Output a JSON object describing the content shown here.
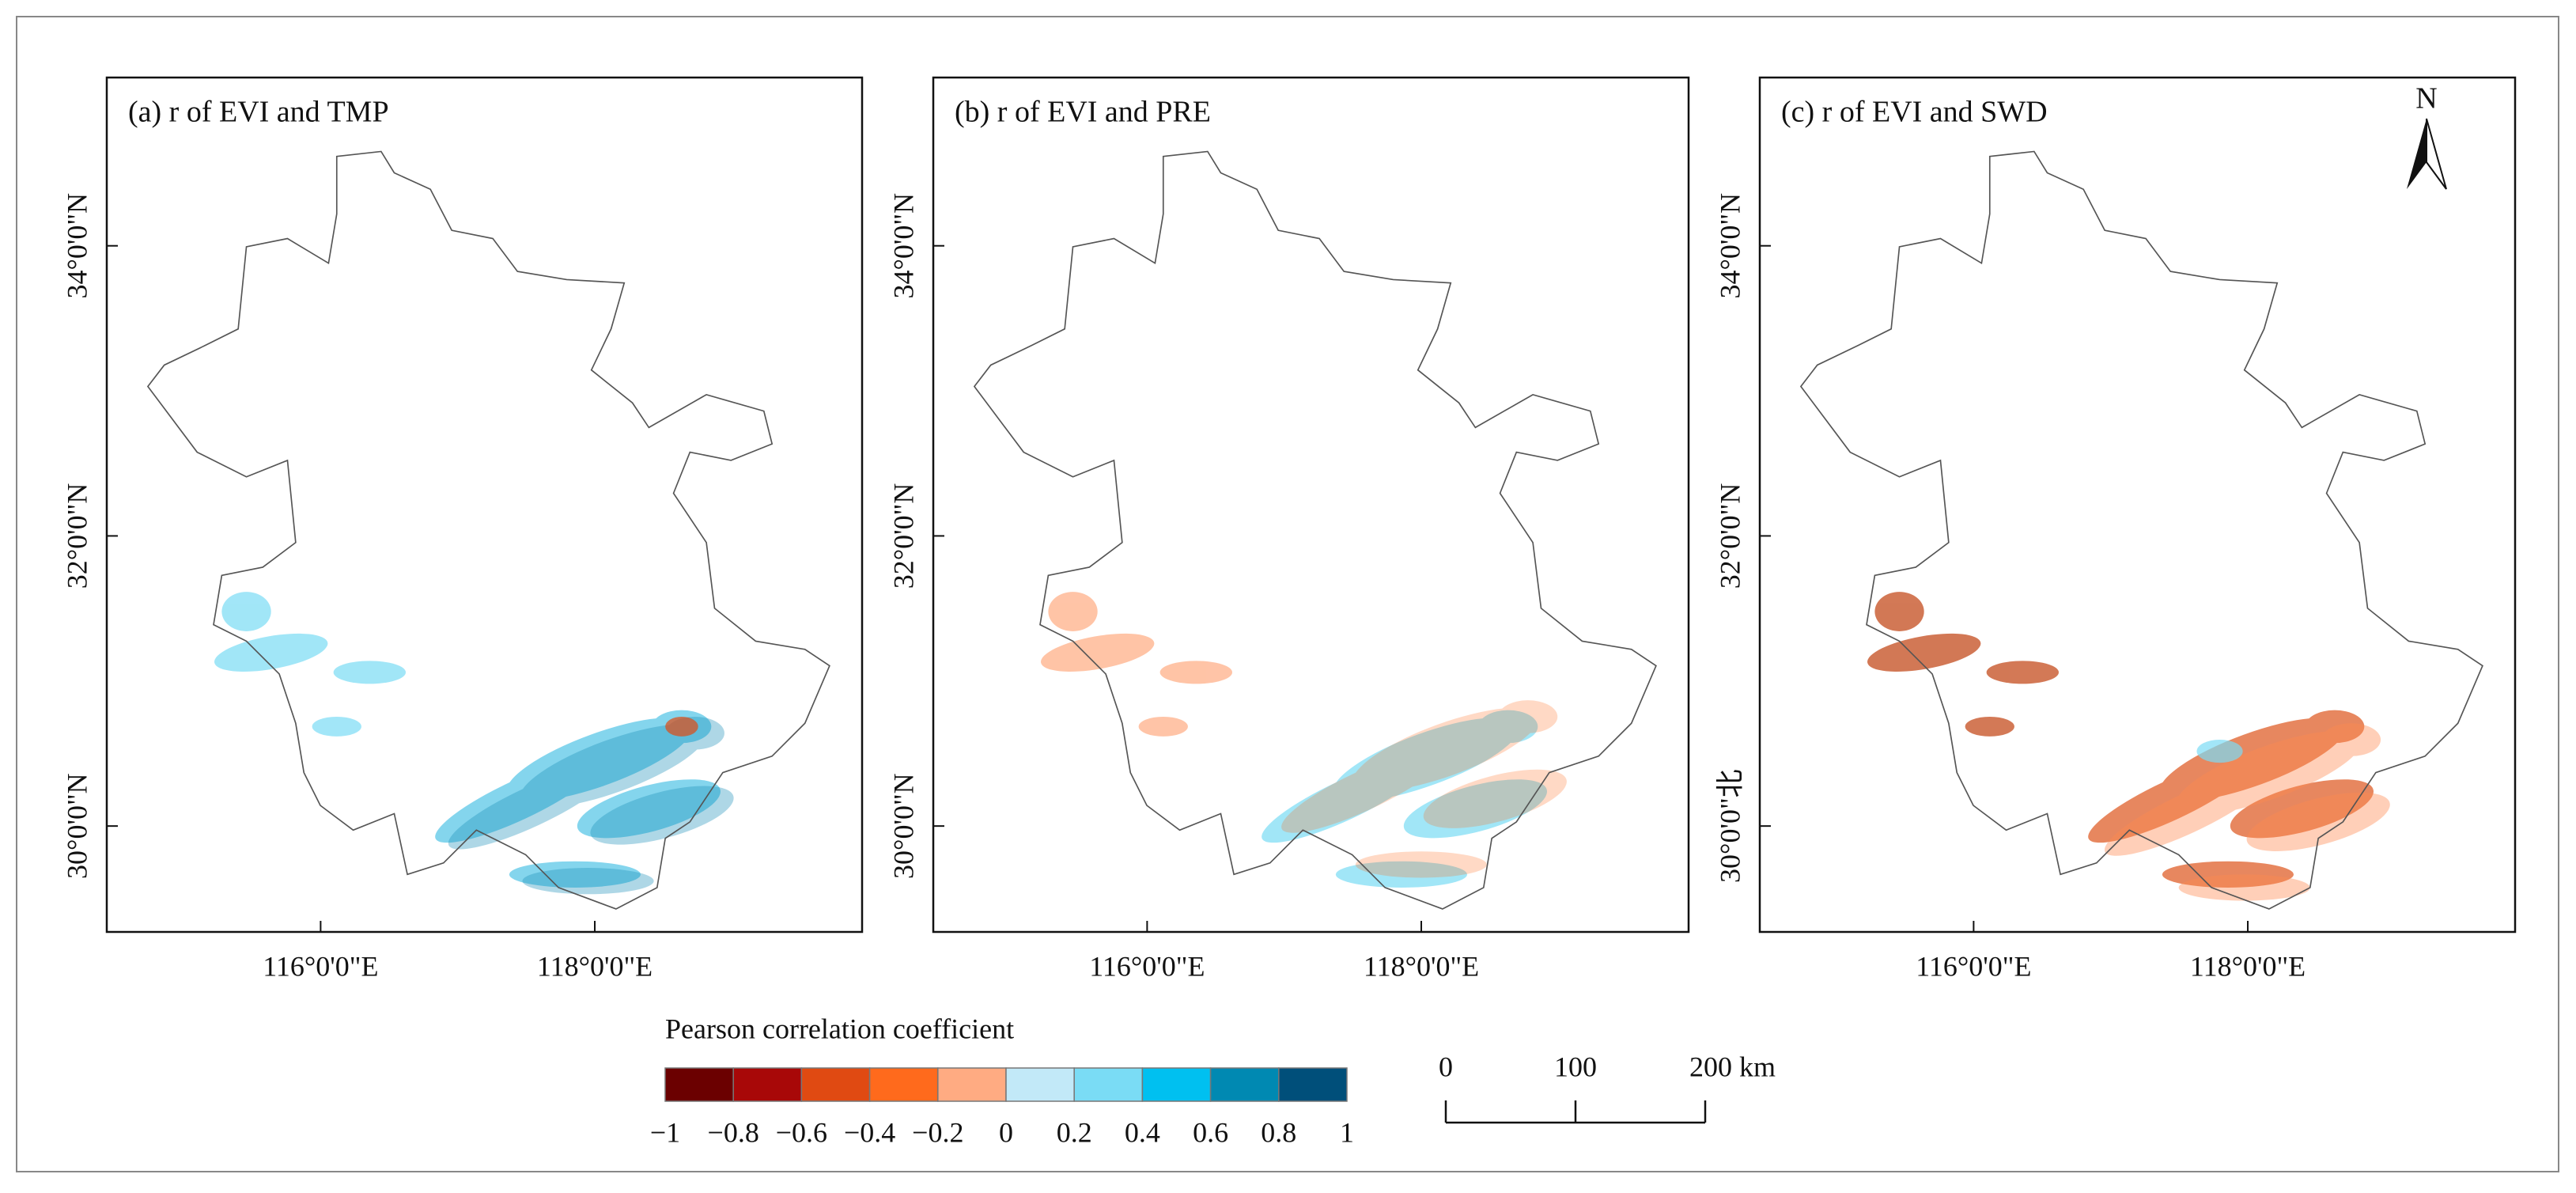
{
  "figure": {
    "panels": [
      {
        "title": "(a) r of EVI and TMP",
        "xlim": [
          114.44,
          119.95
        ],
        "ylim": [
          29.27,
          35.16
        ],
        "xticks": [
          {
            "value": 116,
            "label": "116°0'0\"E"
          },
          {
            "value": 118,
            "label": "118°0'0\"E"
          }
        ],
        "yticks": [
          {
            "value": 34,
            "label": "34°0'0\"N"
          },
          {
            "value": 32,
            "label": "32°0'0\"N"
          },
          {
            "value": 30,
            "label": "30°0'0\"N"
          }
        ]
      },
      {
        "title": "(b) r of EVI and PRE",
        "xlim": [
          114.44,
          119.95
        ],
        "ylim": [
          29.27,
          35.16
        ],
        "xticks": [
          {
            "value": 116,
            "label": "116°0'0\"E"
          },
          {
            "value": 118,
            "label": "118°0'0\"E"
          }
        ],
        "yticks": [
          {
            "value": 34,
            "label": "34°0'0\"N"
          },
          {
            "value": 32,
            "label": "32°0'0\"N"
          },
          {
            "value": 30,
            "label": "30°0'0\"N"
          }
        ]
      },
      {
        "title": "(c) r of EVI and SWD",
        "xlim": [
          114.44,
          119.95
        ],
        "ylim": [
          29.27,
          35.16
        ],
        "xticks": [
          {
            "value": 116,
            "label": "116°0'0\"E"
          },
          {
            "value": 118,
            "label": "118°0'0\"E"
          }
        ],
        "yticks": [
          {
            "value": 34,
            "label": "34°0'0\"N"
          },
          {
            "value": 32,
            "label": "32°0'0\"N"
          },
          {
            "value": 30,
            "label": "30°0'0\"北"
          }
        ]
      }
    ],
    "north_arrow": "N",
    "legend": {
      "title": "Pearson correlation coefficient",
      "colors": [
        "#6b0000",
        "#a80808",
        "#e04a12",
        "#ff6a1c",
        "#ffab82",
        "#c2e9f8",
        "#7adcf5",
        "#00c0f0",
        "#0089b2",
        "#004f7a"
      ],
      "lim": [
        -1,
        1
      ],
      "ticks": [
        {
          "value": -1,
          "label": "−1"
        },
        {
          "value": -0.8,
          "label": "−0.8"
        },
        {
          "value": -0.6,
          "label": "−0.6"
        },
        {
          "value": -0.4,
          "label": "−0.4"
        },
        {
          "value": -0.2,
          "label": "−0.2"
        },
        0,
        0.2,
        0.4,
        0.6,
        0.8,
        1
      ]
    },
    "scale_bar": {
      "ticks": [
        0,
        100,
        {
          "value": 200,
          "label": "200 km"
        }
      ]
    }
  }
}
